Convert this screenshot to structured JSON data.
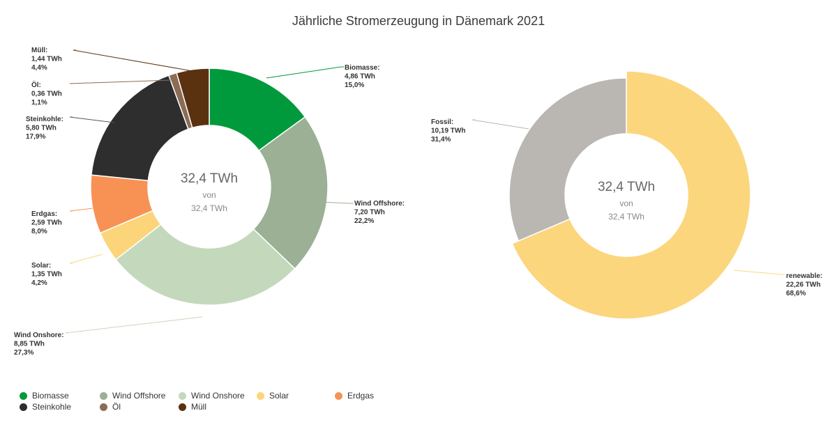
{
  "title": "Jährliche Stromerzeugung in Dänemark 2021",
  "chart_data": [
    {
      "type": "pie",
      "variant": "donut",
      "unit": "TWh",
      "center": {
        "value": "32,4 TWh",
        "von": "von",
        "total": "32,4 TWh"
      },
      "slices": [
        {
          "name": "Biomasse",
          "value": 4.86,
          "value_label": "4,86 TWh",
          "percent_label": "15,0%",
          "color": "#009a3c"
        },
        {
          "name": "Wind Offshore",
          "value": 7.2,
          "value_label": "7,20 TWh",
          "percent_label": "22,2%",
          "color": "#9bb095"
        },
        {
          "name": "Wind Onshore",
          "value": 8.85,
          "value_label": "8,85 TWh",
          "percent_label": "27,3%",
          "color": "#c4d9bc"
        },
        {
          "name": "Solar",
          "value": 1.35,
          "value_label": "1,35 TWh",
          "percent_label": "4,2%",
          "color": "#fcd57a"
        },
        {
          "name": "Erdgas",
          "value": 2.59,
          "value_label": "2,59 TWh",
          "percent_label": "8,0%",
          "color": "#f79254"
        },
        {
          "name": "Steinkohle",
          "value": 5.8,
          "value_label": "5,80 TWh",
          "percent_label": "17,9%",
          "color": "#2e2e2e"
        },
        {
          "name": "Öl",
          "value": 0.36,
          "value_label": "0,36 TWh",
          "percent_label": "1,1%",
          "color": "#8b6c55"
        },
        {
          "name": "Müll",
          "value": 1.44,
          "value_label": "1,44 TWh",
          "percent_label": "4,4%",
          "color": "#5a3210"
        }
      ]
    },
    {
      "type": "pie",
      "variant": "donut",
      "unit": "TWh",
      "center": {
        "value": "32,4 TWh",
        "von": "von",
        "total": "32,4 TWh"
      },
      "slices": [
        {
          "name": "renewable",
          "value": 22.26,
          "value_label": "22,26 TWh",
          "percent_label": "68,6%",
          "color": "#fcd67d"
        },
        {
          "name": "Fossil",
          "value": 10.19,
          "value_label": "10,19 TWh",
          "percent_label": "31,4%",
          "color": "#bab6b2"
        }
      ]
    }
  ],
  "legend": [
    {
      "name": "Biomasse",
      "color": "#009a3c"
    },
    {
      "name": "Wind Offshore",
      "color": "#9bb095"
    },
    {
      "name": "Wind Onshore",
      "color": "#c4d9bc"
    },
    {
      "name": "Solar",
      "color": "#fcd57a"
    },
    {
      "name": "Erdgas",
      "color": "#f79254"
    },
    {
      "name": "Steinkohle",
      "color": "#2e2e2e"
    },
    {
      "name": "Öl",
      "color": "#8b6c55"
    },
    {
      "name": "Müll",
      "color": "#5a3210"
    }
  ]
}
